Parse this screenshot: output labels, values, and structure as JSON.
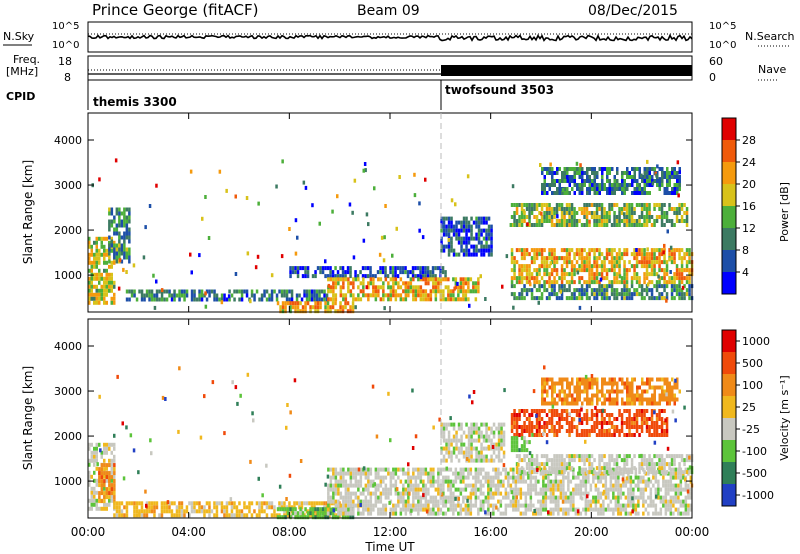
{
  "header": {
    "station": "Prince George (fitACF)",
    "beam": "Beam 09",
    "date": "08/Dec/2015"
  },
  "top_panels": {
    "nsky_label": "N.Sky",
    "nsky_ticks": [
      "10^5",
      "10^0"
    ],
    "nsearch_label": "N.Search",
    "nsearch_ticks": [
      "10^5",
      "10^0"
    ],
    "freq_label": "Freq.",
    "freq_unit": "[MHz]",
    "freq_ticks": [
      "18",
      "8"
    ],
    "nave_label": "Nave",
    "nave_ticks": [
      "60",
      "0"
    ],
    "cpid_label": "CPID",
    "cpid_segments": [
      {
        "name": "themis 3300",
        "start_hour": 0
      },
      {
        "name": "twofsound 3503",
        "start_hour": 14
      }
    ]
  },
  "x_axis": {
    "label": "Time UT",
    "ticks": [
      "00:00",
      "04:00",
      "08:00",
      "12:00",
      "16:00",
      "20:00",
      "00:00"
    ]
  },
  "chart_data": [
    {
      "type": "heatmap",
      "quantity": "Power",
      "title": "",
      "xlabel": "Time UT",
      "ylabel": "Slant Range [km]",
      "xlim": [
        0,
        24
      ],
      "ylim": [
        180,
        4600
      ],
      "yticks": [
        "1000",
        "2000",
        "3000",
        "4000"
      ],
      "colorbar_label": "Power [dB]",
      "colorbar_ticks": [
        "4",
        "8",
        "12",
        "16",
        "20",
        "24",
        "28"
      ],
      "colorbar_range": [
        0,
        32
      ],
      "colors": [
        "#0000ff",
        "#1d4fa8",
        "#3c7a62",
        "#4caf3a",
        "#d8c21a",
        "#f59a0d",
        "#f05a0a",
        "#e00000"
      ],
      "regions": [
        {
          "t0": 0.0,
          "t1": 1.0,
          "r0": 350,
          "r1": 1850,
          "level": 0.55
        },
        {
          "t0": 0.8,
          "t1": 1.6,
          "r0": 1300,
          "r1": 2500,
          "level": 0.3
        },
        {
          "t0": 1.5,
          "t1": 9.5,
          "r0": 420,
          "r1": 680,
          "level": 0.25
        },
        {
          "t0": 7.5,
          "t1": 10.5,
          "r0": 220,
          "r1": 420,
          "level": 0.7
        },
        {
          "t0": 8.0,
          "t1": 14.2,
          "r0": 950,
          "r1": 1200,
          "level": 0.15
        },
        {
          "t0": 9.5,
          "t1": 15.5,
          "r0": 450,
          "r1": 950,
          "level": 0.65
        },
        {
          "t0": 14.0,
          "t1": 16.0,
          "r0": 1500,
          "r1": 2300,
          "level": 0.15
        },
        {
          "t0": 16.8,
          "t1": 23.8,
          "r0": 2100,
          "r1": 2600,
          "level": 0.45
        },
        {
          "t0": 16.8,
          "t1": 24.0,
          "r0": 850,
          "r1": 1600,
          "level": 0.65
        },
        {
          "t0": 16.8,
          "t1": 24.0,
          "r0": 450,
          "r1": 800,
          "level": 0.3
        },
        {
          "t0": 18.0,
          "t1": 23.5,
          "r0": 2800,
          "r1": 3400,
          "level": 0.25
        }
      ]
    },
    {
      "type": "heatmap",
      "quantity": "Velocity",
      "title": "",
      "xlabel": "Time UT",
      "ylabel": "Slant Range [km]",
      "xlim": [
        0,
        24
      ],
      "ylim": [
        180,
        4600
      ],
      "yticks": [
        "1000",
        "2000",
        "3000",
        "4000"
      ],
      "colorbar_label": "Velocity [m s⁻¹]",
      "colorbar_ticks": [
        "1000",
        "500",
        "100",
        "25",
        "-25",
        "-100",
        "-500",
        "-1000"
      ],
      "colors": [
        "#2140c4",
        "#2f7f58",
        "#5cc43a",
        "#c8c8c0",
        "#f0b81e",
        "#f08a18",
        "#f04a0a",
        "#e00000"
      ],
      "regions": [
        {
          "t0": 0.0,
          "t1": 1.0,
          "r0": 350,
          "r1": 1850,
          "cls": 3
        },
        {
          "t0": 0.4,
          "t1": 1.0,
          "r0": 600,
          "r1": 1400,
          "cls": 5
        },
        {
          "t0": 1.0,
          "t1": 10.0,
          "r0": 220,
          "r1": 550,
          "cls": 4
        },
        {
          "t0": 7.5,
          "t1": 10.5,
          "r0": 220,
          "r1": 420,
          "cls": 2
        },
        {
          "t0": 9.5,
          "t1": 24.0,
          "r0": 300,
          "r1": 1300,
          "cls": 3
        },
        {
          "t0": 14.0,
          "t1": 16.5,
          "r0": 1500,
          "r1": 2300,
          "cls": 3
        },
        {
          "t0": 16.8,
          "t1": 23.0,
          "r0": 2000,
          "r1": 2600,
          "cls": 6
        },
        {
          "t0": 16.8,
          "t1": 17.5,
          "r0": 1700,
          "r1": 2000,
          "cls": 2
        },
        {
          "t0": 17.0,
          "t1": 24.0,
          "r0": 1200,
          "r1": 1600,
          "cls": 3
        },
        {
          "t0": 18.0,
          "t1": 23.5,
          "r0": 2700,
          "r1": 3300,
          "cls": 5
        }
      ]
    }
  ]
}
